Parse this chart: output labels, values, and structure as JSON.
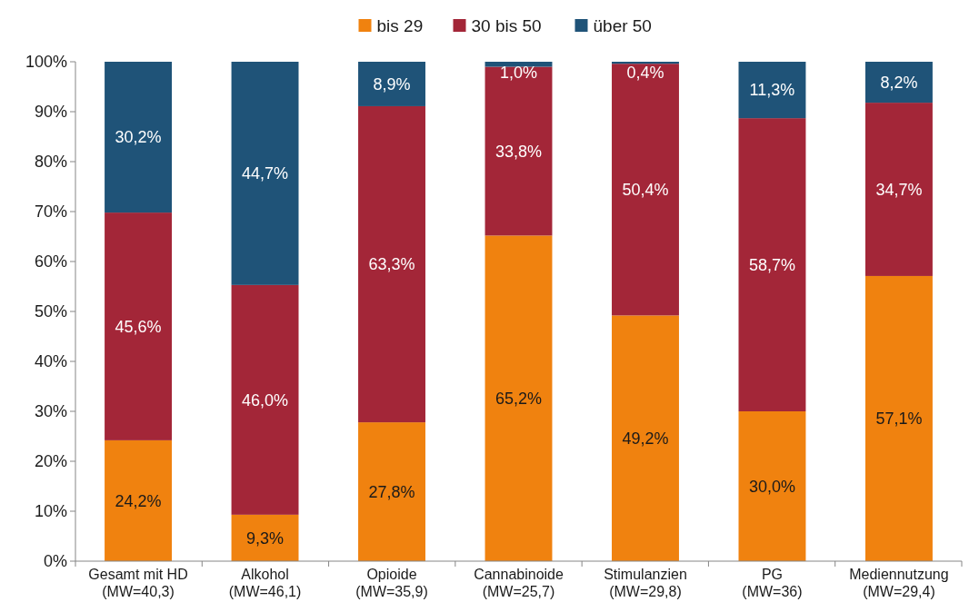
{
  "chart_data": {
    "type": "bar",
    "stacked": true,
    "legend": "top",
    "categories": [
      "Gesamt mit HD\n(MW=40,3)",
      "Alkohol\n(MW=46,1)",
      "Opioide\n(MW=35,9)",
      "Cannabinoide\n(MW=25,7)",
      "Stimulanzien\n(MW=29,8)",
      "PG\n(MW=36)",
      "Mediennutzung\n(MW=29,4)"
    ],
    "series": [
      {
        "name": "bis 29",
        "color": "#f0820f",
        "values": [
          24.2,
          9.3,
          27.8,
          65.2,
          49.2,
          30.0,
          57.1
        ],
        "value_labels": [
          "24,2%",
          "9,3%",
          "27,8%",
          "65,2%",
          "49,2%",
          "30,0%",
          "57,1%"
        ]
      },
      {
        "name": "30 bis 50",
        "color": "#a32638",
        "values": [
          45.6,
          46.0,
          63.3,
          33.8,
          50.4,
          58.7,
          34.7
        ],
        "value_labels": [
          "45,6%",
          "46,0%",
          "63,3%",
          "33,8%",
          "50,4%",
          "58,7%",
          "34,7%"
        ]
      },
      {
        "name": "über 50",
        "color": "#1f5378",
        "values": [
          30.2,
          44.7,
          8.9,
          1.0,
          0.4,
          11.3,
          8.2
        ],
        "value_labels": [
          "30,2%",
          "44,7%",
          "8,9%",
          "1,0%",
          "0,4%",
          "11,3%",
          "8,2%"
        ]
      }
    ],
    "ylim": [
      0,
      100
    ],
    "yticks": [
      {
        "value": 0,
        "label": "0%"
      },
      {
        "value": 10,
        "label": "10%"
      },
      {
        "value": 20,
        "label": "20%"
      },
      {
        "value": 30,
        "label": "30%"
      },
      {
        "value": 40,
        "label": "40%"
      },
      {
        "value": 50,
        "label": "50%"
      },
      {
        "value": 60,
        "label": "60%"
      },
      {
        "value": 70,
        "label": "70%"
      },
      {
        "value": 80,
        "label": "80%"
      },
      {
        "value": 90,
        "label": "90%"
      },
      {
        "value": 100,
        "label": "100%"
      }
    ]
  }
}
